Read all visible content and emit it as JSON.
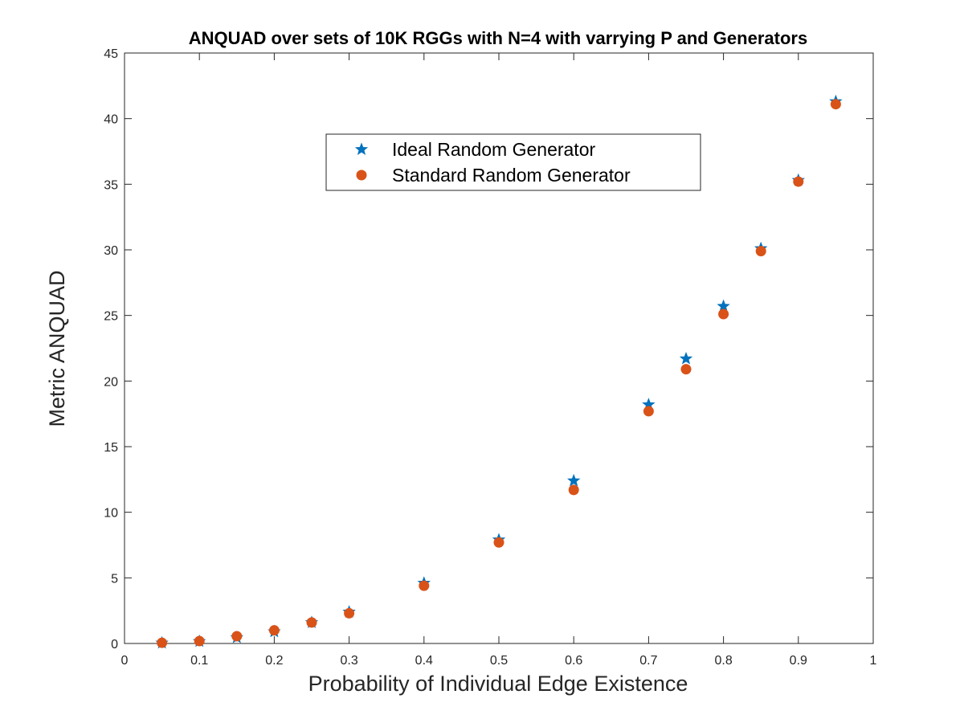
{
  "chart_data": {
    "type": "scatter",
    "title": "ANQUAD over sets of 10K RGGs with N=4 with varrying P and Generators",
    "xlabel": "Probability of Individual Edge Existence",
    "ylabel": "Metric ANQUAD",
    "xlim": [
      0,
      1
    ],
    "ylim": [
      0,
      45
    ],
    "xticks": [
      "0",
      "0.1",
      "0.2",
      "0.3",
      "0.4",
      "0.5",
      "0.6",
      "0.7",
      "0.8",
      "0.9",
      "1"
    ],
    "yticks": [
      "0",
      "5",
      "10",
      "15",
      "20",
      "25",
      "30",
      "35",
      "40",
      "45"
    ],
    "grid": false,
    "legend_position": "top-center",
    "x": [
      0.05,
      0.1,
      0.15,
      0.2,
      0.25,
      0.3,
      0.4,
      0.5,
      0.6,
      0.7,
      0.75,
      0.8,
      0.85,
      0.9,
      0.95
    ],
    "series": [
      {
        "name": "Ideal Random Generator",
        "marker": "star",
        "color": "#0072BD",
        "values": [
          0.04,
          0.16,
          0.45,
          0.9,
          1.6,
          2.4,
          4.6,
          7.9,
          12.4,
          18.2,
          21.7,
          25.7,
          30.1,
          35.3,
          41.3
        ]
      },
      {
        "name": "Standard Random Generator",
        "marker": "circle",
        "color": "#D95319",
        "values": [
          0.05,
          0.18,
          0.55,
          1.0,
          1.6,
          2.3,
          4.4,
          7.7,
          11.7,
          17.7,
          20.9,
          25.1,
          29.9,
          35.2,
          41.1
        ]
      }
    ]
  }
}
